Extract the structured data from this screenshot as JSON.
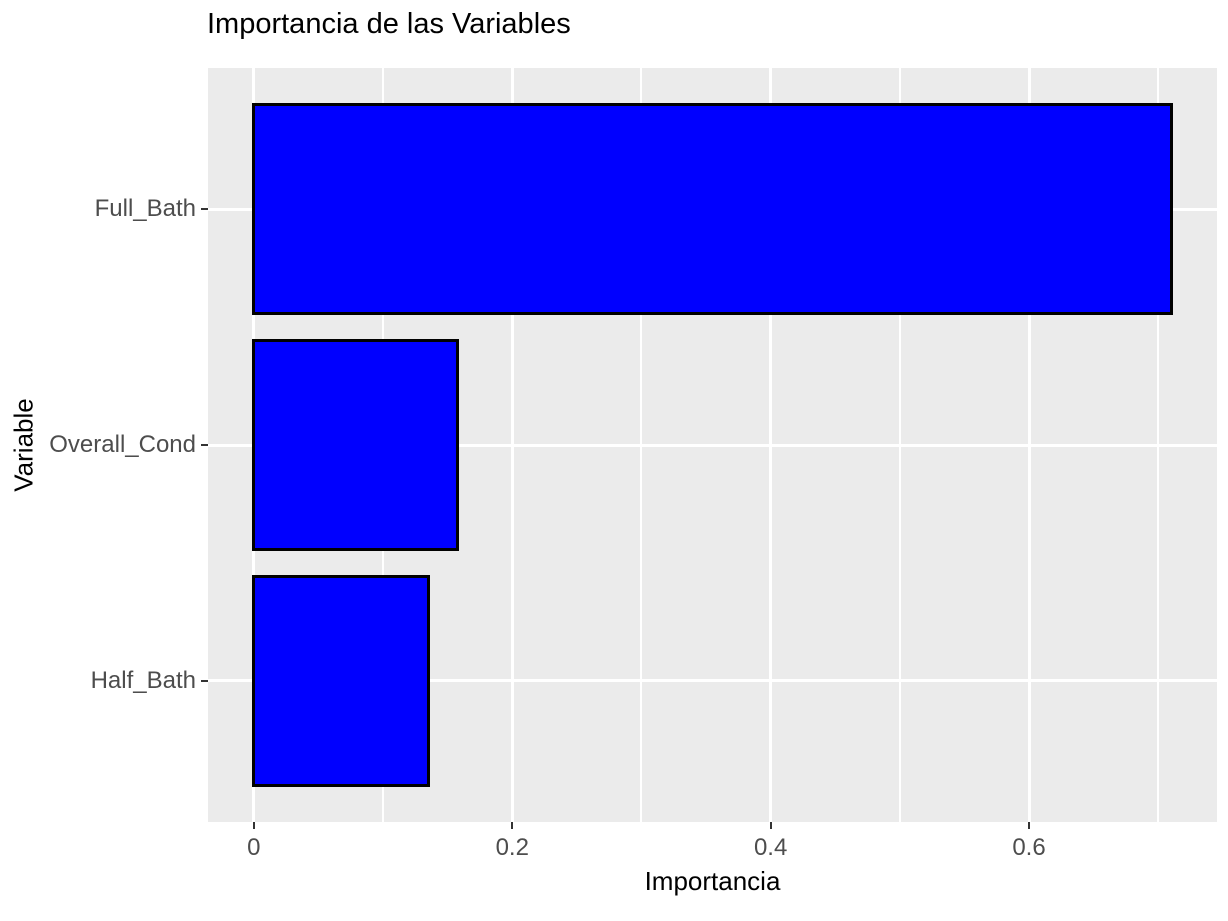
{
  "chart_data": {
    "type": "bar",
    "orientation": "horizontal",
    "title": "Importancia de las Variables",
    "xlabel": "Importancia",
    "ylabel": "Variable",
    "categories": [
      "Full_Bath",
      "Overall_Cond",
      "Half_Bath"
    ],
    "values": [
      0.71,
      0.158,
      0.135
    ],
    "x_tick_labels": [
      "0",
      "0.2",
      "0.4",
      "0.6"
    ],
    "x_tick_values": [
      0,
      0.2,
      0.4,
      0.6
    ],
    "x_minor_tick_values": [
      0.1,
      0.3,
      0.5,
      0.7
    ],
    "xlim": [
      -0.0355,
      0.7455
    ],
    "bar_height_fraction": 0.9,
    "grid": true,
    "legend": false,
    "colors": {
      "bar_fill": "#0000FF",
      "bar_stroke": "#000000",
      "panel_background": "#EBEBEB",
      "grid_major": "#FFFFFF",
      "grid_minor": "#FFFFFF",
      "tick_label": "#4D4D4D",
      "tick_mark": "#333333",
      "axis_title": "#000000",
      "title": "#000000"
    }
  }
}
